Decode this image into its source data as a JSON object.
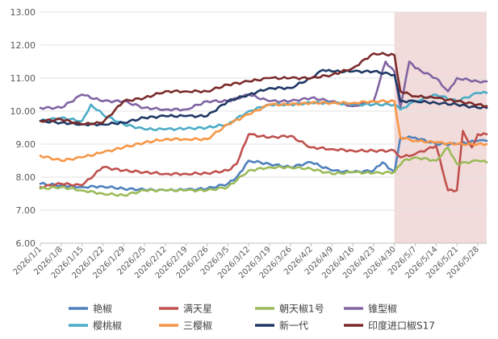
{
  "chart_data": {
    "type": "line",
    "title": "",
    "xlabel": "",
    "ylabel": "",
    "ylim": [
      6.0,
      13.0
    ],
    "yticks": [
      "6.00",
      "7.00",
      "8.00",
      "9.00",
      "10.00",
      "11.00",
      "12.00",
      "13.00"
    ],
    "xticks": [
      "2026/1/1",
      "2026/1/8",
      "2026/1/15",
      "2026/1/22",
      "2026/1/29",
      "2026/2/5",
      "2026/2/12",
      "2026/2/19",
      "2026/2/26",
      "2026/3/5",
      "2026/3/12",
      "2026/3/19",
      "2026/3/26",
      "2026/4/2",
      "2026/4/9",
      "2026/4/16",
      "2026/4/23",
      "2026/4/30",
      "2026/5/7",
      "2026/5/14",
      "2026/5/21",
      "2026/5/28"
    ],
    "grid": true,
    "legend_position": "bottom",
    "shaded_region": {
      "from": "2026/4/30",
      "to": "2026/5/31",
      "color": "#f2dcdb"
    },
    "series": [
      {
        "name": "艳椒",
        "color": "#4f81bd",
        "points": [
          [
            "2026/1/1",
            7.8
          ],
          [
            "2026/1/8",
            7.75
          ],
          [
            "2026/1/15",
            7.7
          ],
          [
            "2026/1/22",
            7.72
          ],
          [
            "2026/1/29",
            7.65
          ],
          [
            "2026/2/5",
            7.62
          ],
          [
            "2026/2/12",
            7.6
          ],
          [
            "2026/2/19",
            7.62
          ],
          [
            "2026/2/26",
            7.65
          ],
          [
            "2026/3/5",
            7.8
          ],
          [
            "2026/3/8",
            8.0
          ],
          [
            "2026/3/12",
            8.5
          ],
          [
            "2026/3/19",
            8.4
          ],
          [
            "2026/3/26",
            8.3
          ],
          [
            "2026/4/2",
            8.45
          ],
          [
            "2026/4/9",
            8.2
          ],
          [
            "2026/4/16",
            8.15
          ],
          [
            "2026/4/23",
            8.2
          ],
          [
            "2026/4/26",
            8.45
          ],
          [
            "2026/4/30",
            8.15
          ],
          [
            "2026/5/2",
            9.2
          ],
          [
            "2026/5/7",
            9.2
          ],
          [
            "2026/5/14",
            9.0
          ],
          [
            "2026/5/21",
            9.0
          ],
          [
            "2026/5/28",
            9.1
          ],
          [
            "2026/5/31",
            9.1
          ]
        ]
      },
      {
        "name": "满天星",
        "color": "#c0504d",
        "points": [
          [
            "2026/1/1",
            7.7
          ],
          [
            "2026/1/8",
            7.8
          ],
          [
            "2026/1/15",
            7.75
          ],
          [
            "2026/1/22",
            8.3
          ],
          [
            "2026/1/29",
            8.2
          ],
          [
            "2026/2/5",
            8.15
          ],
          [
            "2026/2/12",
            8.1
          ],
          [
            "2026/2/19",
            8.1
          ],
          [
            "2026/2/26",
            8.12
          ],
          [
            "2026/3/5",
            8.2
          ],
          [
            "2026/3/8",
            8.4
          ],
          [
            "2026/3/12",
            9.3
          ],
          [
            "2026/3/19",
            9.2
          ],
          [
            "2026/3/26",
            9.25
          ],
          [
            "2026/4/2",
            8.9
          ],
          [
            "2026/4/9",
            8.85
          ],
          [
            "2026/4/16",
            8.8
          ],
          [
            "2026/4/23",
            8.8
          ],
          [
            "2026/4/30",
            8.8
          ],
          [
            "2026/5/2",
            8.6
          ],
          [
            "2026/5/7",
            8.7
          ],
          [
            "2026/5/14",
            8.95
          ],
          [
            "2026/5/18",
            7.6
          ],
          [
            "2026/5/21",
            7.6
          ],
          [
            "2026/5/23",
            9.4
          ],
          [
            "2026/5/26",
            8.9
          ],
          [
            "2026/5/28",
            9.3
          ],
          [
            "2026/5/31",
            9.3
          ]
        ]
      },
      {
        "name": "朝天椒1号",
        "color": "#9bbb59",
        "points": [
          [
            "2026/1/1",
            7.65
          ],
          [
            "2026/1/8",
            7.7
          ],
          [
            "2026/1/15",
            7.6
          ],
          [
            "2026/1/22",
            7.5
          ],
          [
            "2026/1/29",
            7.45
          ],
          [
            "2026/2/5",
            7.6
          ],
          [
            "2026/2/12",
            7.6
          ],
          [
            "2026/2/19",
            7.6
          ],
          [
            "2026/2/26",
            7.6
          ],
          [
            "2026/3/5",
            7.7
          ],
          [
            "2026/3/12",
            8.2
          ],
          [
            "2026/3/19",
            8.3
          ],
          [
            "2026/3/26",
            8.3
          ],
          [
            "2026/4/2",
            8.25
          ],
          [
            "2026/4/9",
            8.1
          ],
          [
            "2026/4/16",
            8.15
          ],
          [
            "2026/4/23",
            8.12
          ],
          [
            "2026/4/30",
            8.15
          ],
          [
            "2026/5/3",
            8.5
          ],
          [
            "2026/5/7",
            8.6
          ],
          [
            "2026/5/14",
            8.5
          ],
          [
            "2026/5/18",
            8.9
          ],
          [
            "2026/5/21",
            8.4
          ],
          [
            "2026/5/28",
            8.5
          ],
          [
            "2026/5/31",
            8.45
          ]
        ]
      },
      {
        "name": "锥型椒",
        "color": "#8064a2",
        "points": [
          [
            "2026/1/1",
            10.1
          ],
          [
            "2026/1/8",
            10.1
          ],
          [
            "2026/1/15",
            10.5
          ],
          [
            "2026/1/22",
            10.3
          ],
          [
            "2026/1/29",
            10.3
          ],
          [
            "2026/2/5",
            10.1
          ],
          [
            "2026/2/12",
            10.05
          ],
          [
            "2026/2/19",
            10.05
          ],
          [
            "2026/2/26",
            10.3
          ],
          [
            "2026/3/5",
            10.3
          ],
          [
            "2026/3/12",
            10.5
          ],
          [
            "2026/3/19",
            10.3
          ],
          [
            "2026/3/26",
            10.3
          ],
          [
            "2026/4/2",
            10.4
          ],
          [
            "2026/4/9",
            10.3
          ],
          [
            "2026/4/16",
            10.15
          ],
          [
            "2026/4/23",
            10.3
          ],
          [
            "2026/4/27",
            11.5
          ],
          [
            "2026/4/30",
            11.2
          ],
          [
            "2026/5/2",
            10.1
          ],
          [
            "2026/5/5",
            11.5
          ],
          [
            "2026/5/7",
            11.3
          ],
          [
            "2026/5/14",
            11.0
          ],
          [
            "2026/5/18",
            10.6
          ],
          [
            "2026/5/21",
            11.0
          ],
          [
            "2026/5/28",
            10.9
          ],
          [
            "2026/5/31",
            10.9
          ]
        ]
      },
      {
        "name": "樱桃椒",
        "color": "#4bacc6",
        "points": [
          [
            "2026/1/1",
            9.7
          ],
          [
            "2026/1/8",
            9.8
          ],
          [
            "2026/1/15",
            9.7
          ],
          [
            "2026/1/18",
            10.2
          ],
          [
            "2026/1/22",
            9.9
          ],
          [
            "2026/1/29",
            9.6
          ],
          [
            "2026/2/5",
            9.45
          ],
          [
            "2026/2/12",
            9.45
          ],
          [
            "2026/2/19",
            9.47
          ],
          [
            "2026/2/26",
            9.5
          ],
          [
            "2026/3/5",
            9.6
          ],
          [
            "2026/3/12",
            10.0
          ],
          [
            "2026/3/19",
            10.2
          ],
          [
            "2026/3/26",
            10.2
          ],
          [
            "2026/4/2",
            10.25
          ],
          [
            "2026/4/9",
            10.25
          ],
          [
            "2026/4/16",
            10.2
          ],
          [
            "2026/4/23",
            10.2
          ],
          [
            "2026/4/30",
            10.2
          ],
          [
            "2026/5/2",
            10.05
          ],
          [
            "2026/5/7",
            10.3
          ],
          [
            "2026/5/14",
            10.5
          ],
          [
            "2026/5/21",
            10.3
          ],
          [
            "2026/5/28",
            10.55
          ],
          [
            "2026/5/31",
            10.55
          ]
        ]
      },
      {
        "name": "三樱椒",
        "color": "#f79646",
        "points": [
          [
            "2026/1/1",
            8.65
          ],
          [
            "2026/1/8",
            8.5
          ],
          [
            "2026/1/15",
            8.6
          ],
          [
            "2026/1/22",
            8.75
          ],
          [
            "2026/1/29",
            8.9
          ],
          [
            "2026/2/5",
            9.05
          ],
          [
            "2026/2/12",
            9.15
          ],
          [
            "2026/2/19",
            9.15
          ],
          [
            "2026/2/26",
            9.15
          ],
          [
            "2026/3/5",
            9.6
          ],
          [
            "2026/3/12",
            9.9
          ],
          [
            "2026/3/19",
            10.2
          ],
          [
            "2026/3/26",
            10.2
          ],
          [
            "2026/4/2",
            10.25
          ],
          [
            "2026/4/9",
            10.25
          ],
          [
            "2026/4/16",
            10.25
          ],
          [
            "2026/4/23",
            10.3
          ],
          [
            "2026/4/30",
            10.3
          ],
          [
            "2026/5/2",
            9.2
          ],
          [
            "2026/5/7",
            9.1
          ],
          [
            "2026/5/14",
            9.05
          ],
          [
            "2026/5/21",
            9.0
          ],
          [
            "2026/5/28",
            9.0
          ],
          [
            "2026/5/31",
            9.0
          ]
        ]
      },
      {
        "name": "新一代",
        "color": "#1f3864",
        "points": [
          [
            "2026/1/1",
            9.7
          ],
          [
            "2026/1/8",
            9.65
          ],
          [
            "2026/1/15",
            9.6
          ],
          [
            "2026/1/22",
            9.6
          ],
          [
            "2026/1/29",
            9.65
          ],
          [
            "2026/2/5",
            9.8
          ],
          [
            "2026/2/12",
            9.85
          ],
          [
            "2026/2/19",
            9.85
          ],
          [
            "2026/2/26",
            9.85
          ],
          [
            "2026/3/5",
            10.3
          ],
          [
            "2026/3/12",
            10.5
          ],
          [
            "2026/3/19",
            10.7
          ],
          [
            "2026/3/26",
            10.7
          ],
          [
            "2026/4/2",
            11.0
          ],
          [
            "2026/4/6",
            11.25
          ],
          [
            "2026/4/9",
            11.2
          ],
          [
            "2026/4/16",
            11.2
          ],
          [
            "2026/4/23",
            11.2
          ],
          [
            "2026/4/30",
            11.1
          ],
          [
            "2026/5/2",
            10.3
          ],
          [
            "2026/5/7",
            10.3
          ],
          [
            "2026/5/14",
            10.25
          ],
          [
            "2026/5/21",
            10.2
          ],
          [
            "2026/5/28",
            10.1
          ],
          [
            "2026/5/31",
            10.1
          ]
        ]
      },
      {
        "name": "印度进口椒S17",
        "color": "#7b2b2b",
        "points": [
          [
            "2026/1/1",
            9.7
          ],
          [
            "2026/1/8",
            9.75
          ],
          [
            "2026/1/15",
            9.6
          ],
          [
            "2026/1/22",
            9.65
          ],
          [
            "2026/1/29",
            10.3
          ],
          [
            "2026/2/5",
            10.4
          ],
          [
            "2026/2/12",
            10.6
          ],
          [
            "2026/2/19",
            10.6
          ],
          [
            "2026/2/26",
            10.6
          ],
          [
            "2026/3/5",
            10.8
          ],
          [
            "2026/3/12",
            10.9
          ],
          [
            "2026/3/19",
            11.0
          ],
          [
            "2026/3/26",
            11.0
          ],
          [
            "2026/4/2",
            11.0
          ],
          [
            "2026/4/9",
            11.1
          ],
          [
            "2026/4/16",
            11.3
          ],
          [
            "2026/4/23",
            11.75
          ],
          [
            "2026/4/30",
            11.7
          ],
          [
            "2026/5/2",
            10.6
          ],
          [
            "2026/5/7",
            10.45
          ],
          [
            "2026/5/14",
            10.4
          ],
          [
            "2026/5/21",
            10.3
          ],
          [
            "2026/5/28",
            10.2
          ],
          [
            "2026/5/31",
            10.15
          ]
        ]
      }
    ]
  }
}
